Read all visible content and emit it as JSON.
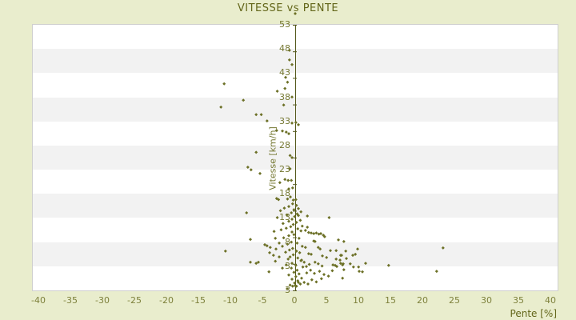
{
  "title": "VITESSE vs PENTE",
  "colors": {
    "page_bg": "#e9edcd",
    "plot_bg": "#ffffff",
    "band": "#f2f2f2",
    "plot_border": "#cfcfcf",
    "title_text": "#63661a",
    "tick_text": "#757832",
    "axis_line": "#53571a",
    "point": "#6c7026"
  },
  "chart_data": {
    "type": "scatter",
    "title": "VITESSE vs PENTE",
    "xlabel": "Pente [%]",
    "ylabel": "Vitesse [km/h]",
    "xlim": [
      -40,
      40
    ],
    "ylim": [
      3,
      53
    ],
    "x_tick_labels": [
      "-40",
      "-35",
      "-30",
      "-25",
      "-20",
      "-15",
      "-10",
      "-5",
      "0",
      "5",
      "10",
      "15",
      "20",
      "25",
      "30",
      "35",
      "40"
    ],
    "y_tick_labels": [
      "53",
      "48",
      "43",
      "38",
      "33",
      "28",
      "23",
      "18",
      "13",
      "8",
      "3",
      "3"
    ],
    "grid": "horizontal alternating bands, y-axis spine drawn at x=0 with ticks every 5 km/h",
    "legend": "none",
    "marker": "diamond",
    "points": [
      [
        0,
        55.1
      ],
      [
        -0.9,
        48.2
      ],
      [
        -0.9,
        46.4
      ],
      [
        -0.5,
        45.5
      ],
      [
        -1.5,
        43.1
      ],
      [
        -1.2,
        42.2
      ],
      [
        -11.1,
        41.9
      ],
      [
        -1.6,
        41.0
      ],
      [
        -2.8,
        40.5
      ],
      [
        -0.5,
        39.4
      ],
      [
        -8.1,
        38.8
      ],
      [
        -1.8,
        37.9
      ],
      [
        -11.6,
        37.5
      ],
      [
        -6.1,
        36.1
      ],
      [
        -5.3,
        36.1
      ],
      [
        -4.4,
        34.9
      ],
      [
        0.1,
        34.6
      ],
      [
        -0.5,
        34.5
      ],
      [
        0.5,
        34.2
      ],
      [
        -2.9,
        33.1
      ],
      [
        -2.0,
        33.0
      ],
      [
        -1.4,
        32.8
      ],
      [
        -1.0,
        32.5
      ],
      [
        -6.1,
        29.0
      ],
      [
        -0.8,
        28.4
      ],
      [
        -0.5,
        28.0
      ],
      [
        -7.4,
        26.2
      ],
      [
        -6.9,
        25.7
      ],
      [
        -5.5,
        25.0
      ],
      [
        -0.8,
        25.9
      ],
      [
        -1.6,
        23.9
      ],
      [
        -1.1,
        23.7
      ],
      [
        -0.6,
        23.7
      ],
      [
        -2.4,
        23.3
      ],
      [
        -0.4,
        22.3
      ],
      [
        -1.0,
        22.1
      ],
      [
        -0.75,
        20.6
      ],
      [
        -1.2,
        20.2
      ],
      [
        -2.6,
        20.1
      ],
      [
        -2.9,
        20.3
      ],
      [
        -0.3,
        20.0
      ],
      [
        0.1,
        20.1
      ],
      [
        -0.4,
        19.3
      ],
      [
        0.2,
        19.0
      ],
      [
        -1.0,
        18.8
      ],
      [
        -1.7,
        18.5
      ],
      [
        0.5,
        18.4
      ],
      [
        -0.2,
        18.2
      ],
      [
        -2.3,
        18.0
      ],
      [
        0.9,
        17.8
      ],
      [
        -0.6,
        17.6
      ],
      [
        -7.6,
        17.6
      ],
      [
        0.3,
        17.4
      ],
      [
        -1.3,
        17.2
      ],
      [
        0.5,
        17.1
      ],
      [
        1.9,
        17.0
      ],
      [
        -0.1,
        16.9
      ],
      [
        -2.8,
        16.7
      ],
      [
        5.3,
        16.7
      ],
      [
        -0.5,
        16.4
      ],
      [
        0.8,
        16.2
      ],
      [
        -1.0,
        16.0
      ],
      [
        0.2,
        15.8
      ],
      [
        -1.9,
        15.6
      ],
      [
        -0.3,
        15.4
      ],
      [
        1.1,
        15.1
      ],
      [
        -0.7,
        15.0
      ],
      [
        1.9,
        14.9
      ],
      [
        -1.4,
        14.7
      ],
      [
        0.4,
        14.6
      ],
      [
        -2.2,
        14.4
      ],
      [
        1.6,
        14.3
      ],
      [
        0.9,
        14.2
      ],
      [
        -3.3,
        14.1
      ],
      [
        -0.5,
        14.0
      ],
      [
        2.1,
        13.9
      ],
      [
        2.5,
        13.8
      ],
      [
        2.9,
        13.7
      ],
      [
        3.3,
        13.8
      ],
      [
        3.7,
        13.6
      ],
      [
        4.0,
        13.7
      ],
      [
        4.4,
        13.4
      ],
      [
        4.6,
        13.1
      ],
      [
        -0.2,
        13.5
      ],
      [
        -1.0,
        13.3
      ],
      [
        0.6,
        12.8
      ],
      [
        -1.8,
        12.9
      ],
      [
        -3.1,
        12.8
      ],
      [
        -7.0,
        12.6
      ],
      [
        6.75,
        12.5
      ],
      [
        7.6,
        12.2
      ],
      [
        2.9,
        12.3
      ],
      [
        3.1,
        12.2
      ],
      [
        -0.6,
        12.1
      ],
      [
        0.3,
        11.9
      ],
      [
        -2.5,
        11.9
      ],
      [
        -4.75,
        11.6
      ],
      [
        -4.4,
        11.4
      ],
      [
        -1.2,
        11.7
      ],
      [
        -2.0,
        11.3
      ],
      [
        1.1,
        11.3
      ],
      [
        1.6,
        11.1
      ],
      [
        3.6,
        11.1
      ],
      [
        -3.9,
        11.1
      ],
      [
        23.1,
        11.0
      ],
      [
        -0.4,
        10.9
      ],
      [
        3.9,
        10.8
      ],
      [
        -3.0,
        10.8
      ],
      [
        9.75,
        10.8
      ],
      [
        -0.9,
        10.6
      ],
      [
        6.4,
        10.5
      ],
      [
        5.5,
        10.5
      ],
      [
        -10.9,
        10.4
      ],
      [
        7.9,
        10.4
      ],
      [
        0.2,
        10.4
      ],
      [
        -1.5,
        10.2
      ],
      [
        -4.0,
        10.1
      ],
      [
        0.7,
        10.1
      ],
      [
        2.1,
        9.9
      ],
      [
        2.5,
        9.8
      ],
      [
        9.4,
        9.8
      ],
      [
        -0.3,
        9.7
      ],
      [
        -3.4,
        9.6
      ],
      [
        9.0,
        9.6
      ],
      [
        7.25,
        9.6
      ],
      [
        7.1,
        9.6
      ],
      [
        4.25,
        9.5
      ],
      [
        -2.5,
        9.3
      ],
      [
        -0.8,
        9.3
      ],
      [
        4.9,
        9.2
      ],
      [
        0.4,
        9.1
      ],
      [
        8.0,
        9.0
      ],
      [
        -1.1,
        8.9
      ],
      [
        6.4,
        8.9
      ],
      [
        1.0,
        8.7
      ],
      [
        7.0,
        8.7
      ],
      [
        0.9,
        8.6
      ],
      [
        -3.1,
        8.5
      ],
      [
        -5.75,
        8.3
      ],
      [
        1.4,
        8.3
      ],
      [
        3.1,
        8.3
      ],
      [
        -7.0,
        8.3
      ],
      [
        -6.1,
        8.1
      ],
      [
        7.1,
        8.1
      ],
      [
        11.0,
        8.1
      ],
      [
        -0.5,
        8.1
      ],
      [
        3.6,
        8.0
      ],
      [
        8.6,
        8.0
      ],
      [
        7.5,
        8.0
      ],
      [
        2.2,
        7.9
      ],
      [
        -1.4,
        7.8
      ],
      [
        5.9,
        7.8
      ],
      [
        7.4,
        7.8
      ],
      [
        0.1,
        7.7
      ],
      [
        6.25,
        7.7
      ],
      [
        14.6,
        7.7
      ],
      [
        4.2,
        7.6
      ],
      [
        1.75,
        7.5
      ],
      [
        6.5,
        7.5
      ],
      [
        9.1,
        7.4
      ],
      [
        9.9,
        7.4
      ],
      [
        1.2,
        7.4
      ],
      [
        -0.6,
        7.2
      ],
      [
        -2.0,
        7.2
      ],
      [
        7.6,
        6.9
      ],
      [
        0.3,
        6.8
      ],
      [
        2.4,
        6.8
      ],
      [
        5.8,
        6.7
      ],
      [
        22.1,
        6.6
      ],
      [
        10.0,
        6.6
      ],
      [
        3.8,
        6.6
      ],
      [
        -4.1,
        6.5
      ],
      [
        10.5,
        6.5
      ],
      [
        -0.2,
        6.4
      ],
      [
        1.8,
        6.3
      ],
      [
        3.0,
        6.2
      ],
      [
        0.6,
        6.1
      ],
      [
        4.5,
        6.0
      ],
      [
        -1.0,
        5.9
      ],
      [
        5.2,
        5.7
      ],
      [
        0.1,
        5.6
      ],
      [
        7.4,
        5.3
      ],
      [
        1.0,
        5.3
      ],
      [
        4.1,
        5.2
      ],
      [
        -0.5,
        5.1
      ],
      [
        2.6,
        5.0
      ],
      [
        0.4,
        4.8
      ],
      [
        3.3,
        4.6
      ],
      [
        1.4,
        4.5
      ],
      [
        0.5,
        4.5
      ],
      [
        -0.1,
        4.4
      ],
      [
        0.8,
        4.2
      ],
      [
        2.0,
        4.2
      ],
      [
        -0.8,
        4.0
      ],
      [
        0.0,
        3.9
      ],
      [
        0.2,
        3.8
      ],
      [
        -0.4,
        3.8
      ],
      [
        -1.25,
        3.3
      ]
    ]
  }
}
